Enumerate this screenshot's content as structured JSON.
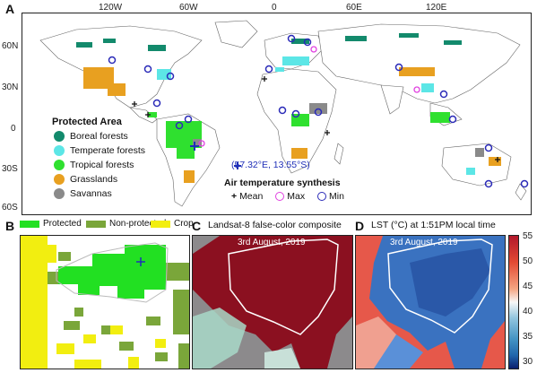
{
  "panel_a": {
    "letter": "A",
    "lon_ticks": [
      "120W",
      "60W",
      "0",
      "60E",
      "120E"
    ],
    "lat_ticks": [
      "60N",
      "30N",
      "0",
      "30S",
      "60S"
    ],
    "legend": {
      "title": "Protected Area",
      "items": [
        {
          "label": "Boreal forests",
          "color": "#138a6c"
        },
        {
          "label": "Temperate forests",
          "color": "#5ce6e6"
        },
        {
          "label": "Tropical forests",
          "color": "#2fe02f"
        },
        {
          "label": "Grasslands",
          "color": "#e8a020"
        },
        {
          "label": "Savannas",
          "color": "#8a8a8a"
        }
      ]
    },
    "air_synthesis": {
      "title": "Air temperature synthesis",
      "mean_label": "Mean",
      "max_label": "Max",
      "min_label": "Min",
      "max_color": "#e040e0",
      "min_color": "#2a2ab8"
    },
    "coordinate_label": "(57.32°E, 13.55°S)",
    "coordinate_color": "#1f2fb8"
  },
  "panel_b": {
    "letter": "B",
    "legend": [
      {
        "label": "Protected",
        "color": "#22e022"
      },
      {
        "label": "Non-protected",
        "color": "#7aa63a"
      },
      {
        "label": "Crop",
        "color": "#f2ee10"
      }
    ]
  },
  "panel_c": {
    "letter": "C",
    "title": "Landsat-8 false-color composite",
    "date": "3rd August, 2019"
  },
  "panel_d": {
    "letter": "D",
    "title": "LST (°C) at 1:51PM local time",
    "date": "3rd August, 2019",
    "colorbar_ticks": [
      "55",
      "50",
      "45",
      "40",
      "35",
      "30"
    ]
  }
}
